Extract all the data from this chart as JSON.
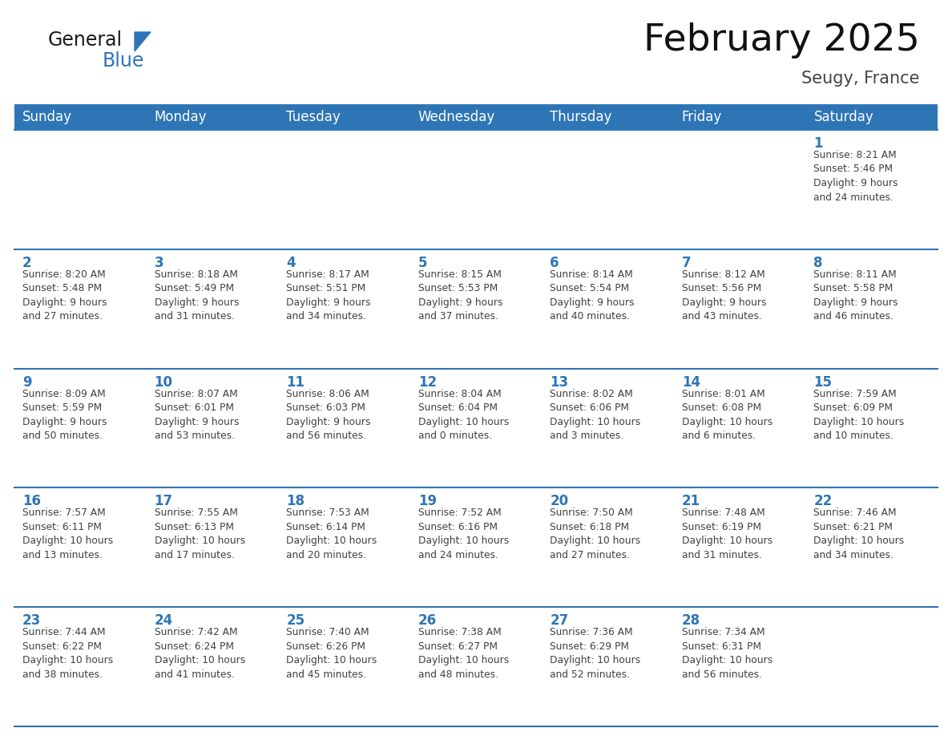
{
  "title": "February 2025",
  "subtitle": "Seugy, France",
  "header_bg": "#2E75B6",
  "header_text_color": "#FFFFFF",
  "border_color": "#2E75B6",
  "text_color": "#404040",
  "day_num_color": "#2E75B6",
  "days_of_week": [
    "Sunday",
    "Monday",
    "Tuesday",
    "Wednesday",
    "Thursday",
    "Friday",
    "Saturday"
  ],
  "weeks": [
    [
      {
        "day": "",
        "info": ""
      },
      {
        "day": "",
        "info": ""
      },
      {
        "day": "",
        "info": ""
      },
      {
        "day": "",
        "info": ""
      },
      {
        "day": "",
        "info": ""
      },
      {
        "day": "",
        "info": ""
      },
      {
        "day": "1",
        "info": "Sunrise: 8:21 AM\nSunset: 5:46 PM\nDaylight: 9 hours\nand 24 minutes."
      }
    ],
    [
      {
        "day": "2",
        "info": "Sunrise: 8:20 AM\nSunset: 5:48 PM\nDaylight: 9 hours\nand 27 minutes."
      },
      {
        "day": "3",
        "info": "Sunrise: 8:18 AM\nSunset: 5:49 PM\nDaylight: 9 hours\nand 31 minutes."
      },
      {
        "day": "4",
        "info": "Sunrise: 8:17 AM\nSunset: 5:51 PM\nDaylight: 9 hours\nand 34 minutes."
      },
      {
        "day": "5",
        "info": "Sunrise: 8:15 AM\nSunset: 5:53 PM\nDaylight: 9 hours\nand 37 minutes."
      },
      {
        "day": "6",
        "info": "Sunrise: 8:14 AM\nSunset: 5:54 PM\nDaylight: 9 hours\nand 40 minutes."
      },
      {
        "day": "7",
        "info": "Sunrise: 8:12 AM\nSunset: 5:56 PM\nDaylight: 9 hours\nand 43 minutes."
      },
      {
        "day": "8",
        "info": "Sunrise: 8:11 AM\nSunset: 5:58 PM\nDaylight: 9 hours\nand 46 minutes."
      }
    ],
    [
      {
        "day": "9",
        "info": "Sunrise: 8:09 AM\nSunset: 5:59 PM\nDaylight: 9 hours\nand 50 minutes."
      },
      {
        "day": "10",
        "info": "Sunrise: 8:07 AM\nSunset: 6:01 PM\nDaylight: 9 hours\nand 53 minutes."
      },
      {
        "day": "11",
        "info": "Sunrise: 8:06 AM\nSunset: 6:03 PM\nDaylight: 9 hours\nand 56 minutes."
      },
      {
        "day": "12",
        "info": "Sunrise: 8:04 AM\nSunset: 6:04 PM\nDaylight: 10 hours\nand 0 minutes."
      },
      {
        "day": "13",
        "info": "Sunrise: 8:02 AM\nSunset: 6:06 PM\nDaylight: 10 hours\nand 3 minutes."
      },
      {
        "day": "14",
        "info": "Sunrise: 8:01 AM\nSunset: 6:08 PM\nDaylight: 10 hours\nand 6 minutes."
      },
      {
        "day": "15",
        "info": "Sunrise: 7:59 AM\nSunset: 6:09 PM\nDaylight: 10 hours\nand 10 minutes."
      }
    ],
    [
      {
        "day": "16",
        "info": "Sunrise: 7:57 AM\nSunset: 6:11 PM\nDaylight: 10 hours\nand 13 minutes."
      },
      {
        "day": "17",
        "info": "Sunrise: 7:55 AM\nSunset: 6:13 PM\nDaylight: 10 hours\nand 17 minutes."
      },
      {
        "day": "18",
        "info": "Sunrise: 7:53 AM\nSunset: 6:14 PM\nDaylight: 10 hours\nand 20 minutes."
      },
      {
        "day": "19",
        "info": "Sunrise: 7:52 AM\nSunset: 6:16 PM\nDaylight: 10 hours\nand 24 minutes."
      },
      {
        "day": "20",
        "info": "Sunrise: 7:50 AM\nSunset: 6:18 PM\nDaylight: 10 hours\nand 27 minutes."
      },
      {
        "day": "21",
        "info": "Sunrise: 7:48 AM\nSunset: 6:19 PM\nDaylight: 10 hours\nand 31 minutes."
      },
      {
        "day": "22",
        "info": "Sunrise: 7:46 AM\nSunset: 6:21 PM\nDaylight: 10 hours\nand 34 minutes."
      }
    ],
    [
      {
        "day": "23",
        "info": "Sunrise: 7:44 AM\nSunset: 6:22 PM\nDaylight: 10 hours\nand 38 minutes."
      },
      {
        "day": "24",
        "info": "Sunrise: 7:42 AM\nSunset: 6:24 PM\nDaylight: 10 hours\nand 41 minutes."
      },
      {
        "day": "25",
        "info": "Sunrise: 7:40 AM\nSunset: 6:26 PM\nDaylight: 10 hours\nand 45 minutes."
      },
      {
        "day": "26",
        "info": "Sunrise: 7:38 AM\nSunset: 6:27 PM\nDaylight: 10 hours\nand 48 minutes."
      },
      {
        "day": "27",
        "info": "Sunrise: 7:36 AM\nSunset: 6:29 PM\nDaylight: 10 hours\nand 52 minutes."
      },
      {
        "day": "28",
        "info": "Sunrise: 7:34 AM\nSunset: 6:31 PM\nDaylight: 10 hours\nand 56 minutes."
      },
      {
        "day": "",
        "info": ""
      }
    ]
  ],
  "logo_general_color": "#1a1a1a",
  "logo_blue_color": "#2E75B6",
  "title_fontsize": 34,
  "subtitle_fontsize": 15,
  "header_fontsize": 12,
  "day_num_fontsize": 12,
  "info_fontsize": 8.8
}
